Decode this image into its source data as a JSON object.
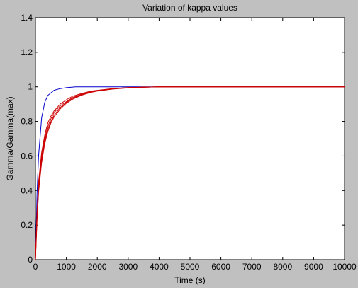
{
  "chart_data": {
    "type": "line",
    "title": "Variation of kappa values",
    "xlabel": "Time (s)",
    "ylabel": "Gamma/Gamma(max)",
    "xlim": [
      0,
      10000
    ],
    "ylim": [
      0,
      1.4
    ],
    "xticks": [
      0,
      1000,
      2000,
      3000,
      4000,
      5000,
      6000,
      7000,
      8000,
      9000,
      10000
    ],
    "yticks": [
      0,
      0.2,
      0.4,
      0.6,
      0.8,
      1,
      1.2,
      1.4
    ],
    "xtick_labels": [
      "0",
      "1000",
      "2000",
      "3000",
      "4000",
      "5000",
      "6000",
      "7000",
      "8000",
      "9000",
      "10000"
    ],
    "ytick_labels": [
      "0",
      "0.2",
      "0.4",
      "0.6",
      "0.8",
      "1",
      "1.2",
      "1.4"
    ],
    "grid": false,
    "legend": "none",
    "series": [
      {
        "color": "#0000cc",
        "x": [
          0,
          50,
          100,
          200,
          300,
          400,
          600,
          800,
          1000,
          1300,
          1600,
          2000,
          3000,
          4000,
          10000
        ],
        "y": [
          0,
          0.38,
          0.6,
          0.82,
          0.91,
          0.95,
          0.98,
          0.99,
          0.995,
          1,
          1,
          1,
          1,
          1,
          1
        ]
      },
      {
        "color": "#cc0000",
        "x": [
          0,
          50,
          100,
          200,
          300,
          400,
          500,
          600,
          800,
          1000,
          1200,
          1500,
          1800,
          2000,
          2500,
          3000,
          3500,
          4000,
          10000
        ],
        "y": [
          0,
          0.28,
          0.45,
          0.62,
          0.72,
          0.79,
          0.83,
          0.86,
          0.9,
          0.925,
          0.945,
          0.962,
          0.975,
          0.98,
          0.99,
          0.996,
          0.998,
          1,
          1
        ]
      },
      {
        "color": "#cc0000",
        "x": [
          0,
          50,
          100,
          200,
          300,
          400,
          500,
          600,
          800,
          1000,
          1200,
          1500,
          1800,
          2000,
          2500,
          3000,
          3500,
          4000,
          10000
        ],
        "y": [
          0,
          0.26,
          0.43,
          0.6,
          0.7,
          0.77,
          0.815,
          0.85,
          0.89,
          0.915,
          0.938,
          0.958,
          0.972,
          0.978,
          0.99,
          0.996,
          0.998,
          1,
          1
        ]
      },
      {
        "color": "#cc0000",
        "x": [
          0,
          50,
          100,
          200,
          300,
          400,
          500,
          600,
          800,
          1000,
          1200,
          1500,
          1800,
          2000,
          2500,
          3000,
          3500,
          4000,
          10000
        ],
        "y": [
          0,
          0.24,
          0.41,
          0.58,
          0.685,
          0.755,
          0.8,
          0.835,
          0.88,
          0.91,
          0.933,
          0.955,
          0.97,
          0.977,
          0.988,
          0.995,
          0.998,
          1,
          1
        ]
      },
      {
        "color": "#cc0000",
        "x": [
          0,
          50,
          100,
          200,
          300,
          400,
          500,
          600,
          800,
          1000,
          1200,
          1500,
          1800,
          2000,
          2500,
          3000,
          3500,
          4000,
          10000
        ],
        "y": [
          0,
          0.22,
          0.39,
          0.56,
          0.67,
          0.74,
          0.79,
          0.825,
          0.872,
          0.905,
          0.928,
          0.952,
          0.968,
          0.975,
          0.987,
          0.994,
          0.998,
          1,
          1
        ]
      }
    ]
  }
}
